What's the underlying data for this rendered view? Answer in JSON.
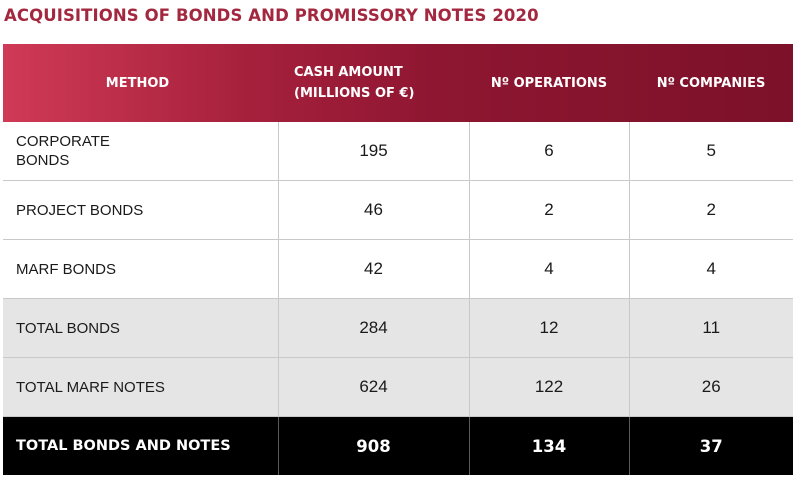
{
  "title": "ACQUISITIONS OF BONDS AND PROMISSORY NOTES 2020",
  "header": {
    "method": "METHOD",
    "cash_line1": "CASH AMOUNT",
    "cash_line2": "(MILLIONS OF €)",
    "operations": "Nº OPERATIONS",
    "companies": "Nº COMPANIES"
  },
  "rows": [
    {
      "method_line1": "CORPORATE",
      "method_line2": "BONDS",
      "cash": "195",
      "operations": "6",
      "companies": "5"
    },
    {
      "method": "PROJECT BONDS",
      "cash": "46",
      "operations": "2",
      "companies": "2"
    },
    {
      "method": "MARF BONDS",
      "cash": "42",
      "operations": "4",
      "companies": "4"
    },
    {
      "method": "TOTAL BONDS",
      "cash": "284",
      "operations": "12",
      "companies": "11"
    },
    {
      "method": "TOTAL MARF NOTES",
      "cash": "624",
      "operations": "122",
      "companies": "26"
    },
    {
      "method": "TOTAL BONDS AND NOTES",
      "cash": "908",
      "operations": "134",
      "companies": "37"
    }
  ],
  "colors": {
    "title": "#a3283f",
    "header_gradient_start": "#d03a56",
    "header_gradient_end": "#7c1129",
    "subtotal_row_bg": "#e5e5e6",
    "total_row_bg": "#000000"
  }
}
